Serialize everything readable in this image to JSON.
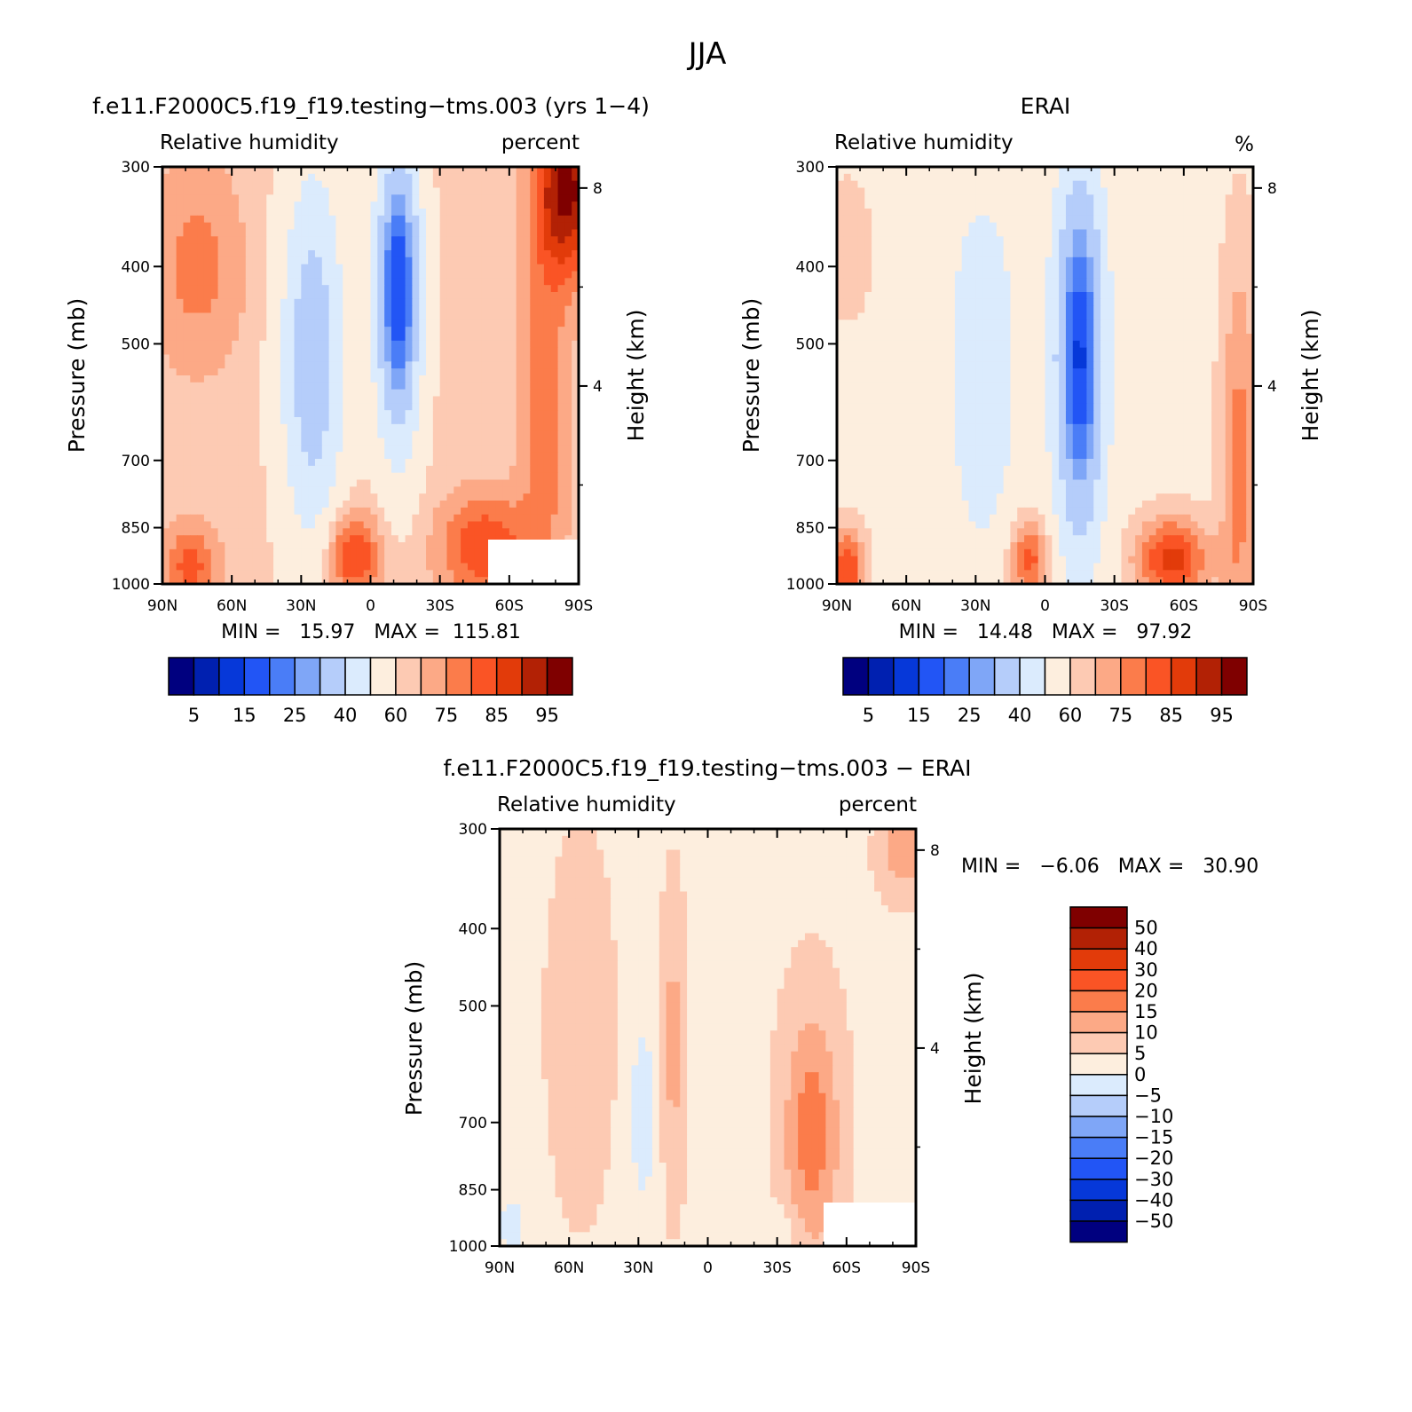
{
  "page_title": "JJA",
  "colors": {
    "rh_levels": [
      "#00007f",
      "#0020b0",
      "#0638d9",
      "#2255f5",
      "#4a7df7",
      "#7fa6f7",
      "#b5cdfa",
      "#dbebfd",
      "#fdeede",
      "#fdcab3",
      "#fca986",
      "#fb7c4b",
      "#fa5425",
      "#e23b0a",
      "#b22105",
      "#7f0000"
    ],
    "diff_levels": [
      "#00007f",
      "#0020b0",
      "#0638d9",
      "#2255f5",
      "#4a7df7",
      "#7fa6f7",
      "#b5cdfa",
      "#dbebfd",
      "#fdeede",
      "#fdcab3",
      "#fca986",
      "#fb7c4b",
      "#fa5425",
      "#e23b0a",
      "#b22105",
      "#7f0000"
    ],
    "missing": "#ffffff"
  },
  "chart_data": [
    {
      "type": "heatmap",
      "title": "f.e11.F2000C5.f19_f19.testing−tms.003 (yrs 1−4)",
      "left_label": "Relative humidity",
      "right_label": "percent",
      "ylabel": "Pressure (mb)",
      "ylabel2": "Height (km)",
      "x_ticks": [
        "90N",
        "60N",
        "30N",
        "0",
        "30S",
        "60S",
        "90S"
      ],
      "x_range": [
        90,
        -90
      ],
      "y_ticks": [
        300,
        400,
        500,
        700,
        850,
        1000
      ],
      "y_scale": "log-pressure",
      "y2_ticks": [
        "8",
        "4"
      ],
      "y2_values": [
        8,
        4
      ],
      "minmax": "MIN =   15.97   MAX =  115.81",
      "colorbar_ticks": [
        "5",
        "15",
        "25",
        "40",
        "60",
        "75",
        "85",
        "95"
      ],
      "colorbar_levels": [
        5,
        10,
        15,
        20,
        25,
        30,
        40,
        50,
        60,
        65,
        70,
        75,
        80,
        85,
        90,
        95
      ]
    },
    {
      "type": "heatmap",
      "title": "ERAI",
      "left_label": "Relative humidity",
      "right_label": "%",
      "ylabel": "Pressure (mb)",
      "ylabel2": "Height (km)",
      "x_ticks": [
        "90N",
        "60N",
        "30N",
        "0",
        "30S",
        "60S",
        "90S"
      ],
      "x_range": [
        90,
        -90
      ],
      "y_ticks": [
        300,
        400,
        500,
        700,
        850,
        1000
      ],
      "y_scale": "log-pressure",
      "y2_ticks": [
        "8",
        "4"
      ],
      "y2_values": [
        8,
        4
      ],
      "minmax": "MIN =   14.48   MAX =   97.92",
      "colorbar_ticks": [
        "5",
        "15",
        "25",
        "40",
        "60",
        "75",
        "85",
        "95"
      ],
      "colorbar_levels": [
        5,
        10,
        15,
        20,
        25,
        30,
        40,
        50,
        60,
        65,
        70,
        75,
        80,
        85,
        90,
        95
      ]
    },
    {
      "type": "heatmap",
      "title": "f.e11.F2000C5.f19_f19.testing−tms.003 − ERAI",
      "left_label": "Relative humidity",
      "right_label": "percent",
      "ylabel": "Pressure (mb)",
      "ylabel2": "Height (km)",
      "x_ticks": [
        "90N",
        "60N",
        "30N",
        "0",
        "30S",
        "60S",
        "90S"
      ],
      "x_range": [
        90,
        -90
      ],
      "y_ticks": [
        300,
        400,
        500,
        700,
        850,
        1000
      ],
      "y_scale": "log-pressure",
      "y2_ticks": [
        "8",
        "4"
      ],
      "y2_values": [
        8,
        4
      ],
      "minmax": "MIN =   −6.06   MAX =   30.90",
      "colorbar_ticks": [
        "50",
        "40",
        "30",
        "20",
        "15",
        "10",
        "5",
        "0",
        "−5",
        "−10",
        "−15",
        "−20",
        "−30",
        "−40",
        "−50"
      ],
      "colorbar_levels": [
        -50,
        -40,
        -30,
        -20,
        -15,
        -10,
        -5,
        0,
        5,
        10,
        15,
        20,
        30,
        40,
        50
      ]
    }
  ]
}
